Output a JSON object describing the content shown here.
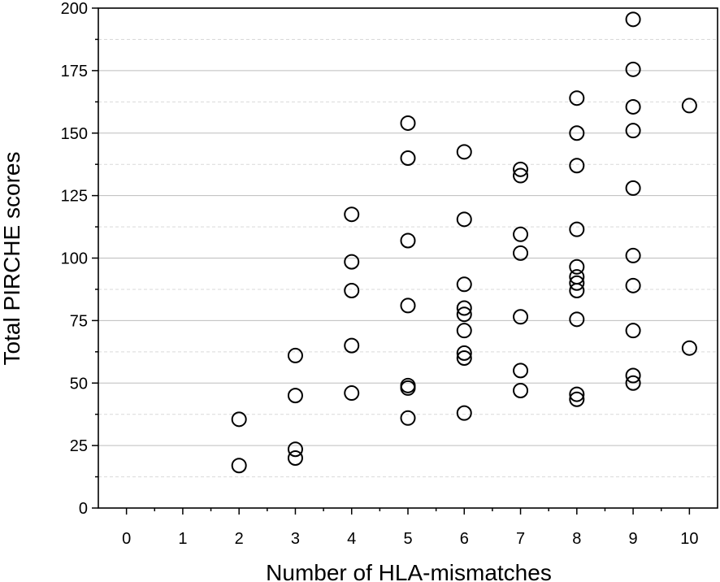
{
  "chart_data": {
    "type": "scatter",
    "xlabel": "Number of HLA-mismatches",
    "ylabel": "Total PIRCHE scores",
    "xlim": [
      -0.5,
      10.5
    ],
    "ylim": [
      0,
      200
    ],
    "x_ticks": [
      0,
      1,
      2,
      3,
      4,
      5,
      6,
      7,
      8,
      9,
      10
    ],
    "y_ticks": [
      0,
      25,
      50,
      75,
      100,
      125,
      150,
      175,
      200
    ],
    "y_minor_grid": [
      12.5,
      37.5,
      62.5,
      87.5,
      112.5,
      137.5,
      162.5,
      187.5
    ],
    "grid": "horizontal",
    "marker": "open-circle",
    "points": [
      {
        "x": 2,
        "y": 35.5
      },
      {
        "x": 2,
        "y": 17
      },
      {
        "x": 3,
        "y": 61
      },
      {
        "x": 3,
        "y": 45
      },
      {
        "x": 3,
        "y": 23.5
      },
      {
        "x": 3,
        "y": 20
      },
      {
        "x": 4,
        "y": 117.5
      },
      {
        "x": 4,
        "y": 98.5
      },
      {
        "x": 4,
        "y": 87
      },
      {
        "x": 4,
        "y": 65
      },
      {
        "x": 4,
        "y": 46
      },
      {
        "x": 5,
        "y": 154
      },
      {
        "x": 5,
        "y": 140
      },
      {
        "x": 5,
        "y": 107
      },
      {
        "x": 5,
        "y": 81
      },
      {
        "x": 5,
        "y": 49
      },
      {
        "x": 5,
        "y": 48
      },
      {
        "x": 5,
        "y": 36
      },
      {
        "x": 6,
        "y": 142.5
      },
      {
        "x": 6,
        "y": 115.5
      },
      {
        "x": 6,
        "y": 89.5
      },
      {
        "x": 6,
        "y": 80
      },
      {
        "x": 6,
        "y": 77.5
      },
      {
        "x": 6,
        "y": 71
      },
      {
        "x": 6,
        "y": 62
      },
      {
        "x": 6,
        "y": 60
      },
      {
        "x": 6,
        "y": 38
      },
      {
        "x": 7,
        "y": 135.5
      },
      {
        "x": 7,
        "y": 133
      },
      {
        "x": 7,
        "y": 109.5
      },
      {
        "x": 7,
        "y": 102
      },
      {
        "x": 7,
        "y": 76.5
      },
      {
        "x": 7,
        "y": 55
      },
      {
        "x": 7,
        "y": 47
      },
      {
        "x": 8,
        "y": 164
      },
      {
        "x": 8,
        "y": 150
      },
      {
        "x": 8,
        "y": 137
      },
      {
        "x": 8,
        "y": 111.5
      },
      {
        "x": 8,
        "y": 96.5
      },
      {
        "x": 8,
        "y": 92.5
      },
      {
        "x": 8,
        "y": 90
      },
      {
        "x": 8,
        "y": 87
      },
      {
        "x": 8,
        "y": 75.5
      },
      {
        "x": 8,
        "y": 45.5
      },
      {
        "x": 8,
        "y": 43.5
      },
      {
        "x": 9,
        "y": 195.5
      },
      {
        "x": 9,
        "y": 175.5
      },
      {
        "x": 9,
        "y": 160.5
      },
      {
        "x": 9,
        "y": 151
      },
      {
        "x": 9,
        "y": 128
      },
      {
        "x": 9,
        "y": 101
      },
      {
        "x": 9,
        "y": 89
      },
      {
        "x": 9,
        "y": 71
      },
      {
        "x": 9,
        "y": 53
      },
      {
        "x": 9,
        "y": 50
      },
      {
        "x": 10,
        "y": 161
      },
      {
        "x": 10,
        "y": 64
      }
    ]
  }
}
